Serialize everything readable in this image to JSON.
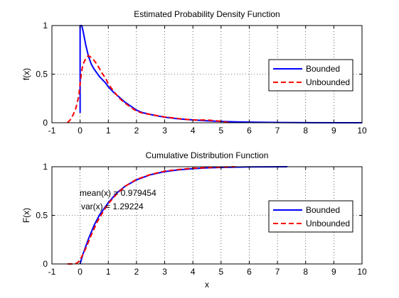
{
  "chart_data": [
    {
      "type": "line",
      "title": "Estimated Probability Density Function",
      "xlabel": "",
      "ylabel": "f(x)",
      "xlim": [
        -1,
        10
      ],
      "ylim": [
        0,
        1
      ],
      "xticks": [
        "-1",
        "0",
        "1",
        "2",
        "3",
        "4",
        "5",
        "6",
        "7",
        "8",
        "9",
        "10"
      ],
      "yticks": [
        "0",
        "0.5",
        "1"
      ],
      "grid": true,
      "legend": "right",
      "series": [
        {
          "name": "Bounded",
          "color": "#0000ff",
          "style": "solid",
          "points": [
            [
              0,
              0.1
            ],
            [
              0,
              1.0
            ],
            [
              0.02,
              1.0
            ],
            [
              0.06,
              1.0
            ],
            [
              0.1,
              0.95
            ],
            [
              0.2,
              0.8
            ],
            [
              0.3,
              0.68
            ],
            [
              0.4,
              0.6
            ],
            [
              0.5,
              0.55
            ],
            [
              0.6,
              0.51
            ],
            [
              0.7,
              0.47
            ],
            [
              0.8,
              0.44
            ],
            [
              0.9,
              0.41
            ],
            [
              1.0,
              0.37
            ],
            [
              1.2,
              0.31
            ],
            [
              1.4,
              0.26
            ],
            [
              1.6,
              0.21
            ],
            [
              1.8,
              0.17
            ],
            [
              2.0,
              0.13
            ],
            [
              2.2,
              0.105
            ],
            [
              2.5,
              0.085
            ],
            [
              2.8,
              0.067
            ],
            [
              3.0,
              0.057
            ],
            [
              3.5,
              0.04
            ],
            [
              4.0,
              0.029
            ],
            [
              4.5,
              0.02
            ],
            [
              5.0,
              0.014
            ],
            [
              5.5,
              0.009
            ],
            [
              6.0,
              0.006
            ],
            [
              7.0,
              0.003
            ],
            [
              8.0,
              0.001
            ],
            [
              9.0,
              0.0
            ],
            [
              10.0,
              0.0
            ]
          ]
        },
        {
          "name": "Unbounded",
          "color": "#ff0000",
          "style": "dashed",
          "points": [
            [
              -0.45,
              0.0
            ],
            [
              -0.35,
              0.03
            ],
            [
              -0.25,
              0.08
            ],
            [
              -0.15,
              0.15
            ],
            [
              -0.05,
              0.27
            ],
            [
              0.0,
              0.4
            ],
            [
              0.05,
              0.52
            ],
            [
              0.1,
              0.6
            ],
            [
              0.2,
              0.66
            ],
            [
              0.25,
              0.68
            ],
            [
              0.3,
              0.69
            ],
            [
              0.4,
              0.67
            ],
            [
              0.5,
              0.64
            ],
            [
              0.6,
              0.6
            ],
            [
              0.7,
              0.55
            ],
            [
              0.8,
              0.5
            ],
            [
              0.9,
              0.46
            ],
            [
              1.0,
              0.4
            ],
            [
              1.2,
              0.32
            ],
            [
              1.4,
              0.25
            ],
            [
              1.6,
              0.2
            ],
            [
              1.8,
              0.16
            ],
            [
              2.0,
              0.12
            ],
            [
              2.2,
              0.1
            ],
            [
              2.5,
              0.085
            ],
            [
              2.8,
              0.07
            ],
            [
              3.0,
              0.06
            ],
            [
              3.5,
              0.042
            ],
            [
              4.0,
              0.028
            ],
            [
              4.5,
              0.028
            ],
            [
              5.0,
              0.015
            ],
            [
              5.3,
              0.0
            ]
          ]
        }
      ]
    },
    {
      "type": "line",
      "title": "Cumulative Distribution Function",
      "xlabel": "x",
      "ylabel": "F(x)",
      "xlim": [
        -1,
        10
      ],
      "ylim": [
        0,
        1
      ],
      "xticks": [
        "-1",
        "0",
        "1",
        "2",
        "3",
        "4",
        "5",
        "6",
        "7",
        "8",
        "9",
        "10"
      ],
      "yticks": [
        "0",
        "0.5",
        "1"
      ],
      "grid": true,
      "legend": "right",
      "annotations": [
        "mean(x) = 0.979454",
        "var(x) = 1.29224"
      ],
      "series": [
        {
          "name": "Bounded",
          "color": "#0000ff",
          "style": "solid",
          "points": [
            [
              0,
              0.0
            ],
            [
              0.1,
              0.1
            ],
            [
              0.3,
              0.26
            ],
            [
              0.5,
              0.4
            ],
            [
              0.7,
              0.51
            ],
            [
              1.0,
              0.63
            ],
            [
              1.3,
              0.73
            ],
            [
              1.6,
              0.8
            ],
            [
              2.0,
              0.865
            ],
            [
              2.5,
              0.918
            ],
            [
              3.0,
              0.95
            ],
            [
              3.5,
              0.968
            ],
            [
              4.0,
              0.98
            ],
            [
              4.5,
              0.988
            ],
            [
              5.0,
              0.993
            ],
            [
              6.0,
              0.998
            ],
            [
              7.35,
              1.0
            ]
          ]
        },
        {
          "name": "Unbounded",
          "color": "#ff0000",
          "style": "dashed",
          "points": [
            [
              -0.45,
              0.0
            ],
            [
              -0.2,
              0.0
            ],
            [
              -0.1,
              0.01
            ],
            [
              0.0,
              0.04
            ],
            [
              0.2,
              0.16
            ],
            [
              0.4,
              0.3
            ],
            [
              0.6,
              0.43
            ],
            [
              0.8,
              0.53
            ],
            [
              1.0,
              0.62
            ],
            [
              1.3,
              0.72
            ],
            [
              1.6,
              0.8
            ],
            [
              2.0,
              0.87
            ],
            [
              2.5,
              0.92
            ],
            [
              3.0,
              0.955
            ],
            [
              3.5,
              0.972
            ],
            [
              4.0,
              0.985
            ],
            [
              4.5,
              0.99
            ],
            [
              5.0,
              0.996
            ],
            [
              5.5,
              1.0
            ]
          ]
        }
      ]
    }
  ]
}
